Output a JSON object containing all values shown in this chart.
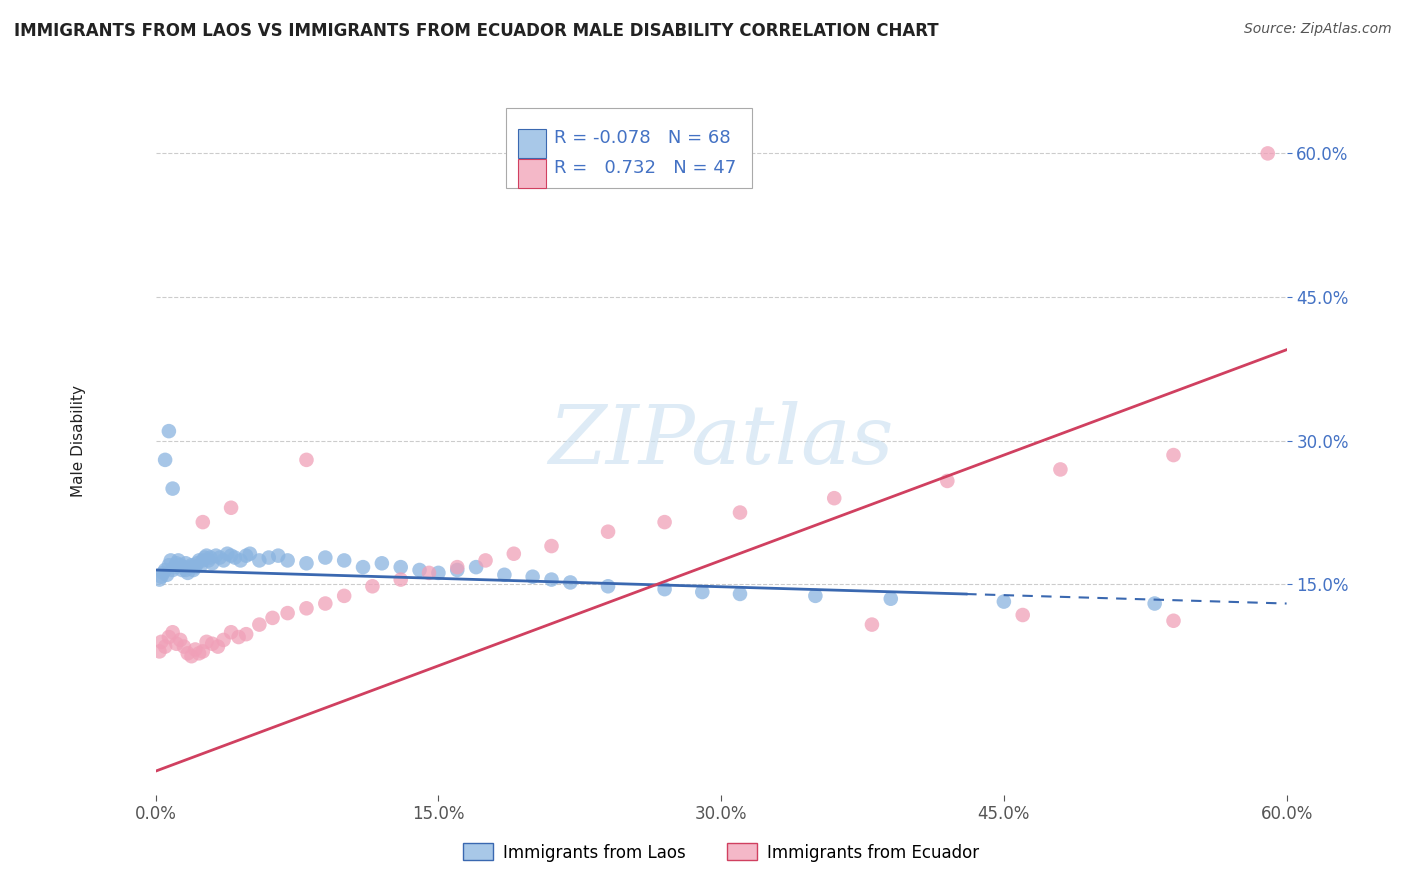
{
  "title": "IMMIGRANTS FROM LAOS VS IMMIGRANTS FROM ECUADOR MALE DISABILITY CORRELATION CHART",
  "source": "Source: ZipAtlas.com",
  "ylabel": "Male Disability",
  "xlim": [
    0.0,
    0.6
  ],
  "ylim": [
    -0.07,
    0.67
  ],
  "xtick_vals": [
    0.0,
    0.15,
    0.3,
    0.45,
    0.6
  ],
  "xtick_labels": [
    "0.0%",
    "15.0%",
    "30.0%",
    "45.0%",
    "60.0%"
  ],
  "ytick_vals": [
    0.15,
    0.3,
    0.45,
    0.6
  ],
  "ytick_labels": [
    "15.0%",
    "30.0%",
    "45.0%",
    "60.0%"
  ],
  "laos": {
    "name": "Immigrants from Laos",
    "R": -0.078,
    "N": 68,
    "scatter_color": "#8ab4e0",
    "line_color": "#3a68b0",
    "legend_face": "#a8c8e8",
    "legend_edge": "#3a68b0",
    "x": [
      0.002,
      0.003,
      0.004,
      0.005,
      0.006,
      0.007,
      0.008,
      0.009,
      0.01,
      0.011,
      0.012,
      0.013,
      0.014,
      0.015,
      0.016,
      0.016,
      0.017,
      0.018,
      0.019,
      0.02,
      0.021,
      0.022,
      0.023,
      0.024,
      0.025,
      0.026,
      0.027,
      0.028,
      0.029,
      0.03,
      0.032,
      0.034,
      0.036,
      0.038,
      0.04,
      0.042,
      0.045,
      0.048,
      0.05,
      0.055,
      0.06,
      0.065,
      0.07,
      0.08,
      0.09,
      0.1,
      0.11,
      0.12,
      0.13,
      0.14,
      0.15,
      0.16,
      0.17,
      0.185,
      0.2,
      0.21,
      0.22,
      0.24,
      0.27,
      0.29,
      0.31,
      0.35,
      0.39,
      0.45,
      0.53,
      0.005,
      0.007,
      0.009
    ],
    "y": [
      0.155,
      0.158,
      0.162,
      0.165,
      0.16,
      0.17,
      0.175,
      0.165,
      0.168,
      0.172,
      0.175,
      0.17,
      0.165,
      0.168,
      0.172,
      0.165,
      0.162,
      0.168,
      0.17,
      0.165,
      0.168,
      0.172,
      0.175,
      0.17,
      0.175,
      0.178,
      0.18,
      0.175,
      0.178,
      0.172,
      0.18,
      0.178,
      0.175,
      0.182,
      0.18,
      0.178,
      0.175,
      0.18,
      0.182,
      0.175,
      0.178,
      0.18,
      0.175,
      0.172,
      0.178,
      0.175,
      0.168,
      0.172,
      0.168,
      0.165,
      0.162,
      0.165,
      0.168,
      0.16,
      0.158,
      0.155,
      0.152,
      0.148,
      0.145,
      0.142,
      0.14,
      0.138,
      0.135,
      0.132,
      0.13,
      0.28,
      0.31,
      0.25
    ]
  },
  "ecuador": {
    "name": "Immigrants from Ecuador",
    "R": 0.732,
    "N": 47,
    "scatter_color": "#f0a0b8",
    "line_color": "#d04060",
    "legend_face": "#f4b8c8",
    "legend_edge": "#d04060",
    "x": [
      0.002,
      0.003,
      0.005,
      0.007,
      0.009,
      0.011,
      0.013,
      0.015,
      0.017,
      0.019,
      0.021,
      0.023,
      0.025,
      0.027,
      0.03,
      0.033,
      0.036,
      0.04,
      0.044,
      0.048,
      0.055,
      0.062,
      0.07,
      0.08,
      0.09,
      0.1,
      0.115,
      0.13,
      0.145,
      0.16,
      0.175,
      0.19,
      0.21,
      0.24,
      0.27,
      0.31,
      0.36,
      0.42,
      0.48,
      0.54,
      0.59,
      0.025,
      0.04,
      0.08,
      0.38,
      0.46,
      0.54
    ],
    "y": [
      0.08,
      0.09,
      0.085,
      0.095,
      0.1,
      0.088,
      0.092,
      0.085,
      0.078,
      0.075,
      0.082,
      0.078,
      0.08,
      0.09,
      0.088,
      0.085,
      0.092,
      0.1,
      0.095,
      0.098,
      0.108,
      0.115,
      0.12,
      0.125,
      0.13,
      0.138,
      0.148,
      0.155,
      0.162,
      0.168,
      0.175,
      0.182,
      0.19,
      0.205,
      0.215,
      0.225,
      0.24,
      0.258,
      0.27,
      0.285,
      0.6,
      0.215,
      0.23,
      0.28,
      0.108,
      0.118,
      0.112
    ]
  },
  "blue_line": {
    "x0": 0.0,
    "x1": 0.6,
    "y0": 0.165,
    "y1": 0.13
  },
  "blue_line_solid_end": 0.43,
  "pink_line": {
    "x0": 0.0,
    "x1": 0.6,
    "y0": -0.045,
    "y1": 0.395
  },
  "watermark_text": "ZIPatlas",
  "watermark_color": "#c8dff0",
  "background_color": "#ffffff",
  "grid_color": "#cccccc",
  "title_color": "#222222",
  "source_color": "#555555",
  "tick_color_y": "#4472c4",
  "tick_color_x": "#555555",
  "title_fontsize": 12,
  "source_fontsize": 10,
  "tick_fontsize": 12,
  "ylabel_fontsize": 11,
  "legend_fontsize": 13
}
